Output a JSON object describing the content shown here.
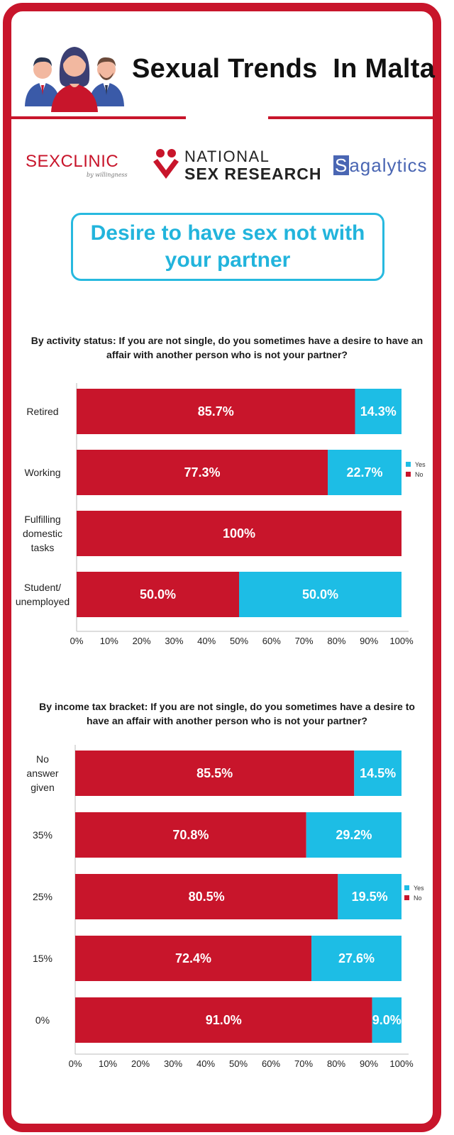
{
  "header": {
    "title": "Sexual Trends  In Malta",
    "icon": "people-group-icon"
  },
  "logos": {
    "sexclinic_sex": "SEX",
    "sexclinic_clinic": "CLINIC",
    "sexclinic_sub": "by willingness",
    "nsr_top": "NATIONAL",
    "nsr_bottom": "SEX RESEARCH",
    "sagalytics_s": "S",
    "sagalytics_rest": "agalytics"
  },
  "subtitle": "Desire to have sex not with your partner",
  "colors": {
    "no": "#c8152b",
    "yes": "#1dbde5",
    "frame": "#c8152b"
  },
  "chart_data": [
    {
      "type": "bar",
      "orientation": "horizontal",
      "stacked": true,
      "title": "By activity status: If you are not single, do you sometimes have a desire to have an affair with another person who is not your partner?",
      "categories": [
        "Retired",
        "Working",
        "Fulfilling domestic tasks",
        "Student/ unemployed"
      ],
      "category_lines": [
        [
          "Retired"
        ],
        [
          "Working"
        ],
        [
          "Fulfilling",
          "domestic",
          "tasks"
        ],
        [
          "Student/",
          "unemployed"
        ]
      ],
      "series": [
        {
          "name": "No",
          "values": [
            85.7,
            77.3,
            100,
            50.0
          ],
          "labels": [
            "85.7%",
            "77.3%",
            "100%",
            "50.0%"
          ]
        },
        {
          "name": "Yes",
          "values": [
            14.3,
            22.7,
            0,
            50.0
          ],
          "labels": [
            "14.3%",
            "22.7%",
            "",
            "50.0%"
          ]
        }
      ],
      "xticks": [
        "0%",
        "10%",
        "20%",
        "30%",
        "40%",
        "50%",
        "60%",
        "70%",
        "80%",
        "90%",
        "100%"
      ],
      "xlim": [
        0,
        100
      ],
      "legend": [
        "Yes",
        "No"
      ],
      "legend_position": "right"
    },
    {
      "type": "bar",
      "orientation": "horizontal",
      "stacked": true,
      "title": "By income tax bracket: If you are not single, do you sometimes have a desire to have an affair with another person who is not your partner?",
      "categories": [
        "No answer given",
        "35%",
        "25%",
        "15%",
        "0%"
      ],
      "category_lines": [
        [
          "No",
          "answer",
          "given"
        ],
        [
          "35%"
        ],
        [
          "25%"
        ],
        [
          "15%"
        ],
        [
          "0%"
        ]
      ],
      "series": [
        {
          "name": "No",
          "values": [
            85.5,
            70.8,
            80.5,
            72.4,
            91.0
          ],
          "labels": [
            "85.5%",
            "70.8%",
            "80.5%",
            "72.4%",
            "91.0%"
          ]
        },
        {
          "name": "Yes",
          "values": [
            14.5,
            29.2,
            19.5,
            27.6,
            9.0
          ],
          "labels": [
            "14.5%",
            "29.2%",
            "19.5%",
            "27.6%",
            "9.0%"
          ]
        }
      ],
      "xticks": [
        "0%",
        "10%",
        "20%",
        "30%",
        "40%",
        "50%",
        "60%",
        "70%",
        "80%",
        "90%",
        "100%"
      ],
      "xlim": [
        0,
        100
      ],
      "legend": [
        "Yes",
        "No"
      ],
      "legend_position": "right"
    }
  ]
}
